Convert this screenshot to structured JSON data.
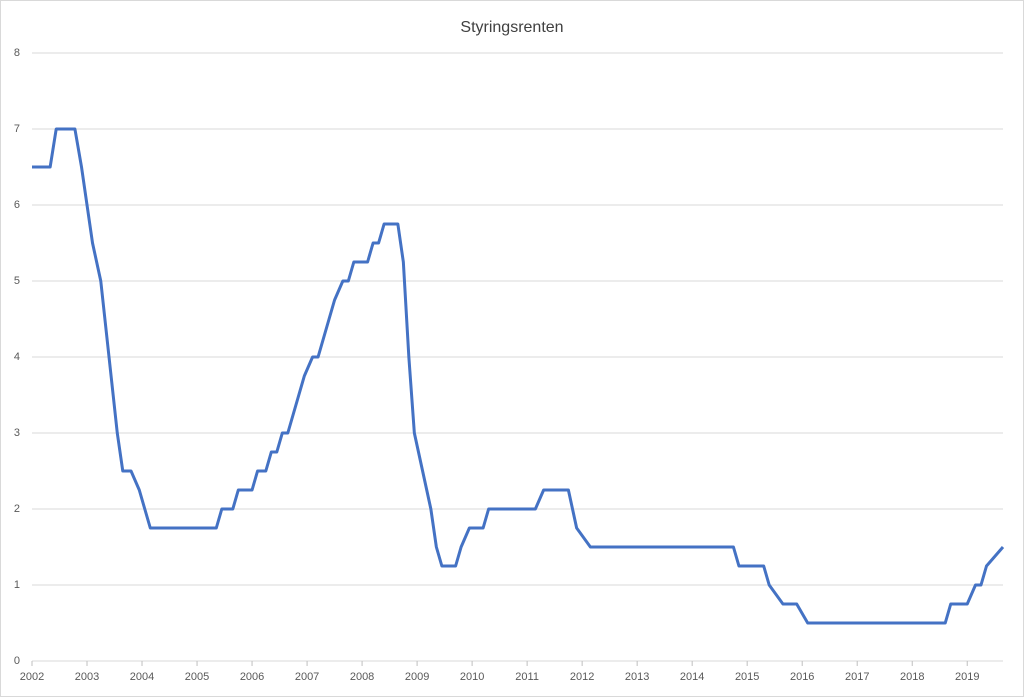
{
  "chart_data": {
    "type": "line",
    "title": "Styringsrenten",
    "x": [
      2002.0,
      2002.33,
      2002.44,
      2002.78,
      2002.9,
      2003.0,
      2003.1,
      2003.25,
      2003.4,
      2003.55,
      2003.65,
      2003.8,
      2003.95,
      2004.05,
      2004.15,
      2005.35,
      2005.45,
      2005.65,
      2005.75,
      2006.0,
      2006.1,
      2006.25,
      2006.35,
      2006.45,
      2006.55,
      2006.65,
      2006.75,
      2006.85,
      2006.95,
      2007.1,
      2007.2,
      2007.3,
      2007.4,
      2007.5,
      2007.65,
      2007.75,
      2007.85,
      2008.1,
      2008.2,
      2008.3,
      2008.4,
      2008.65,
      2008.75,
      2008.85,
      2008.95,
      2009.1,
      2009.25,
      2009.35,
      2009.45,
      2009.7,
      2009.8,
      2009.95,
      2010.2,
      2010.3,
      2011.15,
      2011.3,
      2011.75,
      2011.9,
      2012.15,
      2014.75,
      2014.85,
      2015.3,
      2015.4,
      2015.65,
      2015.9,
      2016.1,
      2018.6,
      2018.7,
      2019.0,
      2019.15,
      2019.25,
      2019.35,
      2019.65
    ],
    "series": [
      {
        "name": "Styringsrenten",
        "color": "#4472c4",
        "values": [
          6.5,
          6.5,
          7,
          7,
          6.5,
          6,
          5.5,
          5,
          4,
          3,
          2.5,
          2.5,
          2.25,
          2,
          1.75,
          1.75,
          2,
          2,
          2.25,
          2.25,
          2.5,
          2.5,
          2.75,
          2.75,
          3,
          3,
          3.25,
          3.5,
          3.75,
          4,
          4,
          4.25,
          4.5,
          4.75,
          5,
          5,
          5.25,
          5.25,
          5.5,
          5.5,
          5.75,
          5.75,
          5.25,
          4,
          3,
          2.5,
          2,
          1.5,
          1.25,
          1.25,
          1.5,
          1.75,
          1.75,
          2,
          2,
          2.25,
          2.25,
          1.75,
          1.5,
          1.5,
          1.25,
          1.25,
          1,
          0.75,
          0.75,
          0.5,
          0.5,
          0.75,
          0.75,
          1,
          1,
          1.25,
          1.5
        ]
      }
    ],
    "xlim": [
      2002,
      2019.65
    ],
    "xticks": [
      2002,
      2003,
      2004,
      2005,
      2006,
      2007,
      2008,
      2009,
      2010,
      2011,
      2012,
      2013,
      2014,
      2015,
      2016,
      2017,
      2018,
      2019
    ],
    "ylim": [
      0,
      8
    ],
    "yticks": [
      0,
      1,
      2,
      3,
      4,
      5,
      6,
      7,
      8
    ],
    "grid": true
  }
}
